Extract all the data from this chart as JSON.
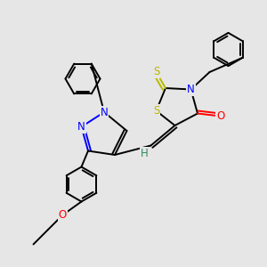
{
  "bg_color": "#e6e6e6",
  "atom_colors": {
    "N": "#0000ff",
    "O": "#ff0000",
    "S": "#b8b800",
    "H": "#2e8b57",
    "C": "#000000"
  },
  "figsize": [
    3.0,
    3.0
  ],
  "dpi": 100
}
